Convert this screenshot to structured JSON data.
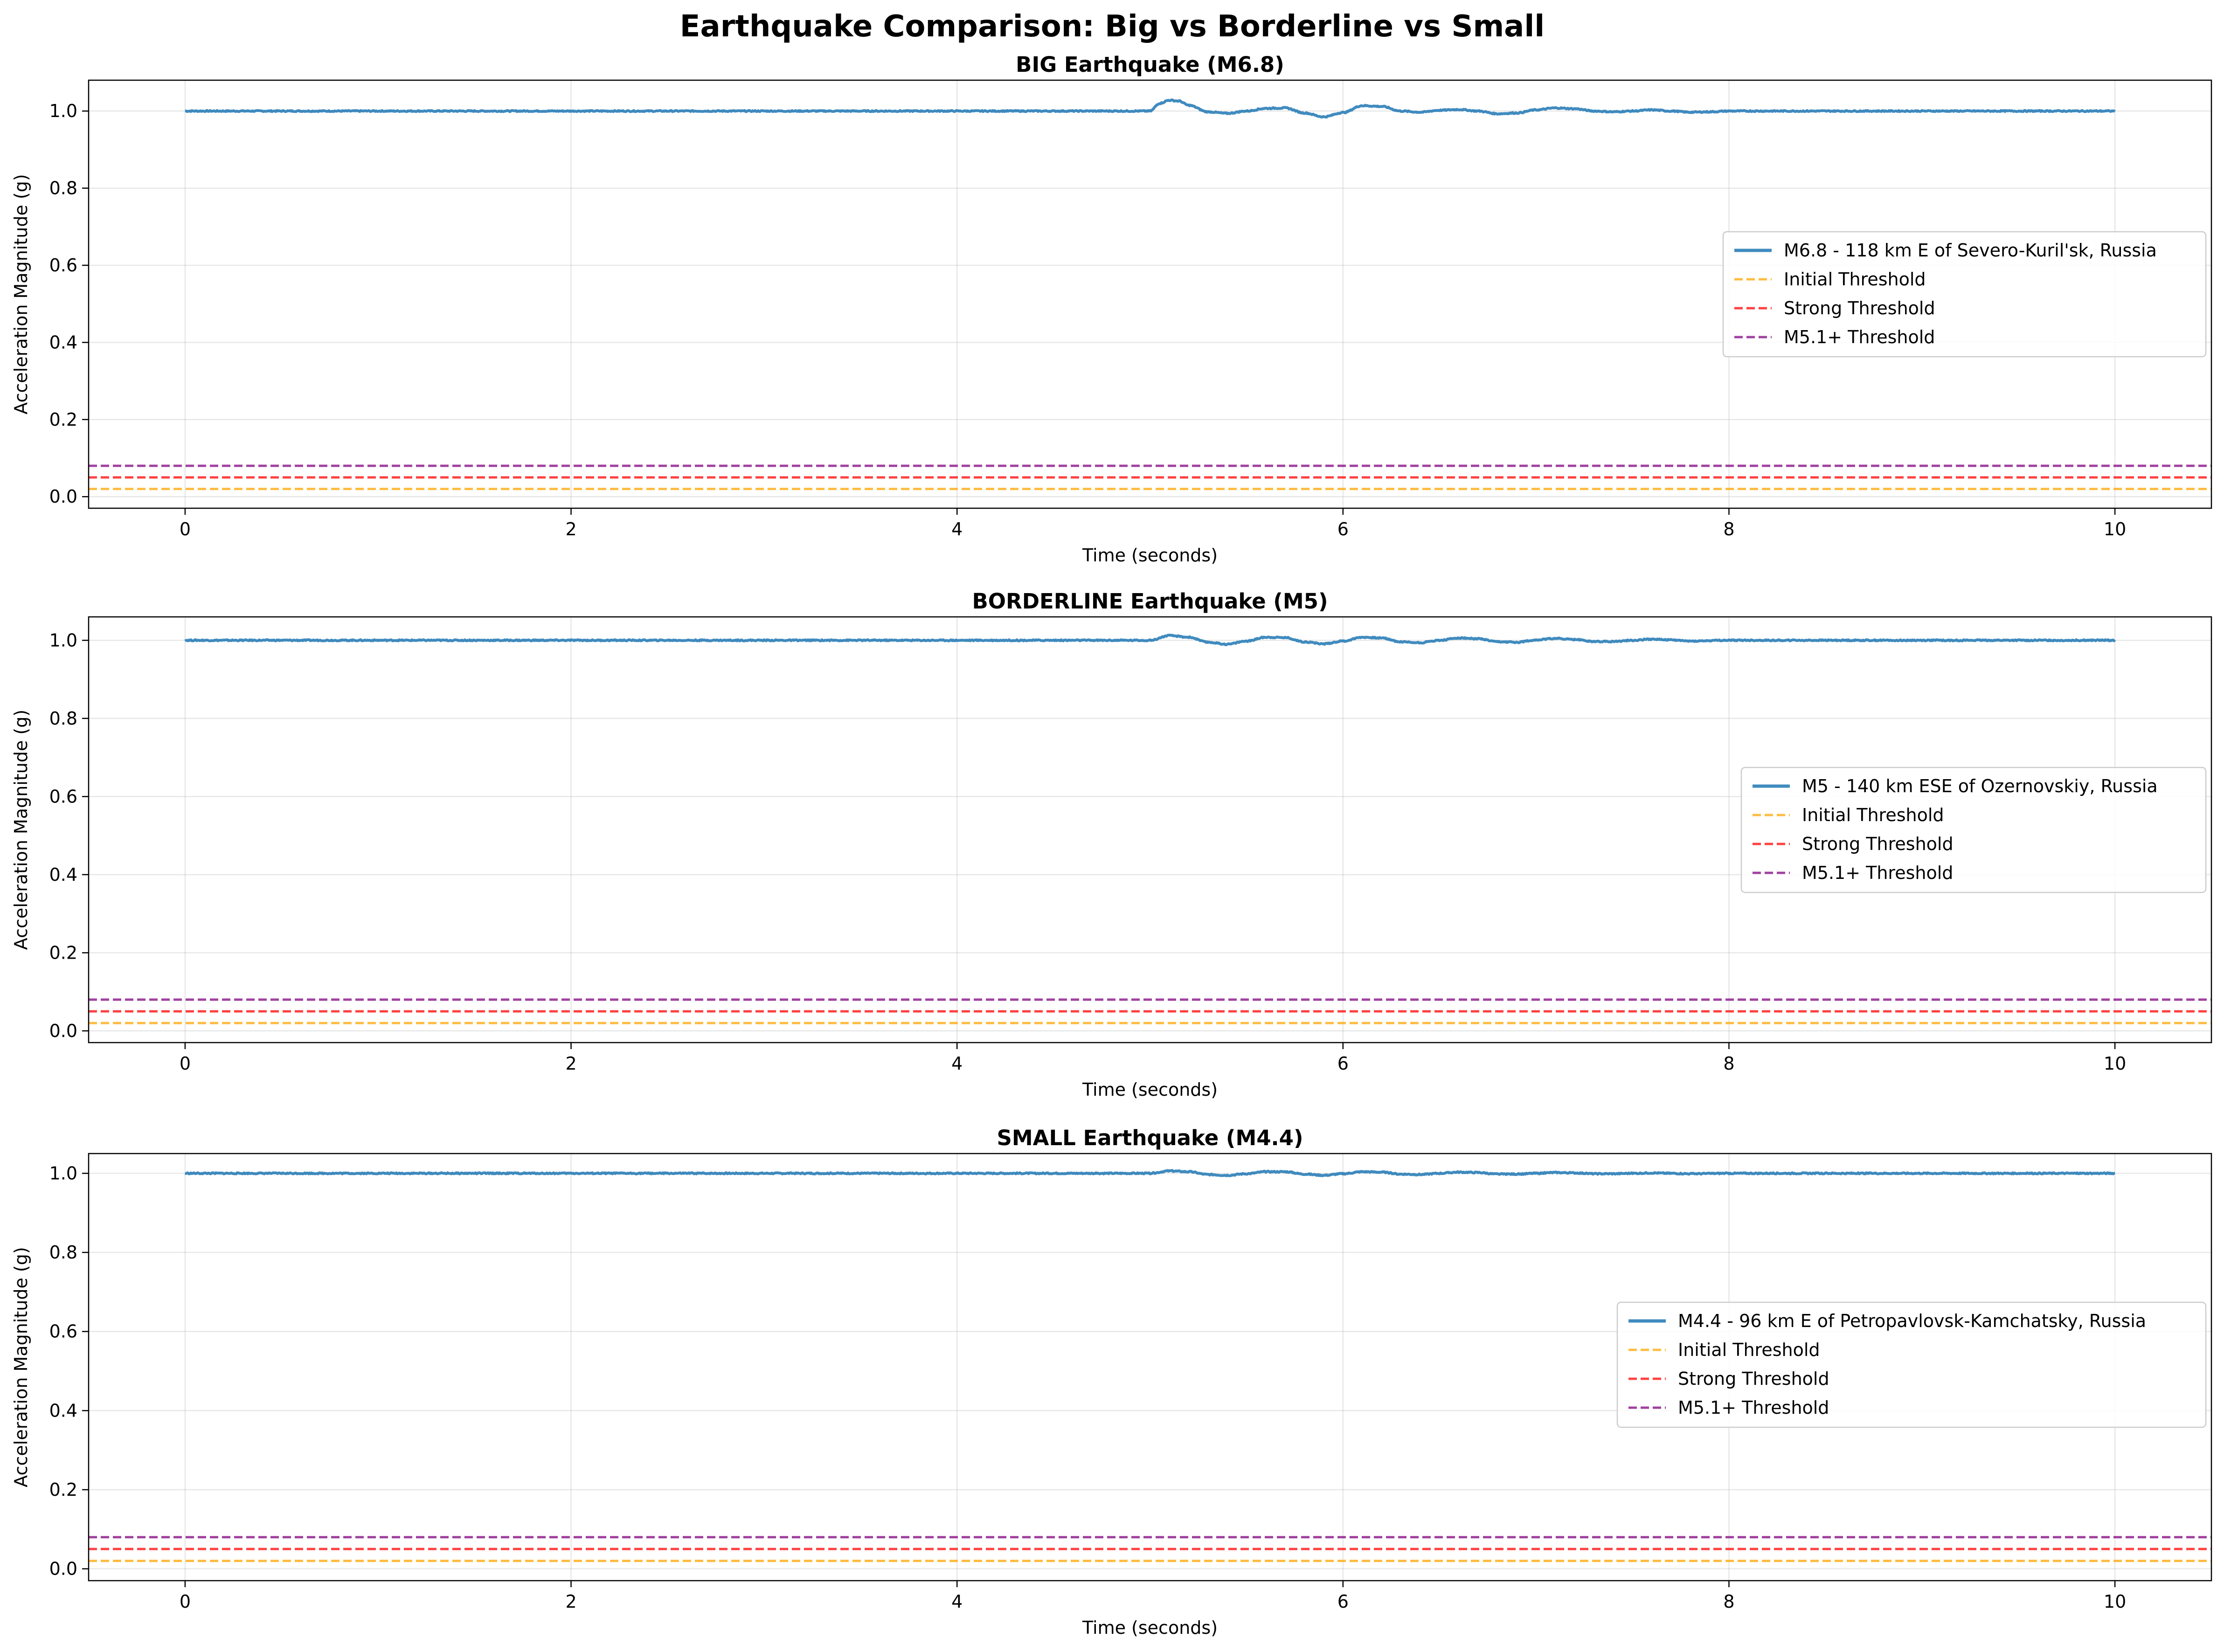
{
  "figure_title": "Earthquake Comparison: Big vs Borderline vs Small",
  "colors": {
    "signal": "#1f77b4",
    "initial": "#ffa500",
    "strong": "#ff0000",
    "m51": "#800080",
    "grid": "#b0b0b0",
    "axis": "#000000"
  },
  "chart_data": [
    {
      "type": "line",
      "title": "BIG Earthquake (M6.8)",
      "xlabel": "Time (seconds)",
      "ylabel": "Acceleration Magnitude (g)",
      "xlim": [
        -0.5,
        10.5
      ],
      "ylim": [
        -0.03,
        1.08
      ],
      "xticks": [
        0,
        2,
        4,
        6,
        8,
        10
      ],
      "xtick_labels": [
        "0",
        "2",
        "4",
        "6",
        "8",
        "10"
      ],
      "yticks": [
        0.0,
        0.2,
        0.4,
        0.6,
        0.8,
        1.0
      ],
      "ytick_labels": [
        "0.0",
        "0.2",
        "0.4",
        "0.6",
        "0.8",
        "1.0"
      ],
      "grid": true,
      "legend_position": "center-right",
      "signal": {
        "name": "M6.8 - 118 km E of Severo-Kuril'sk, Russia",
        "x": [
          0,
          4.5,
          5.0,
          5.05,
          5.1,
          5.15,
          5.2,
          5.3,
          5.4,
          5.5,
          5.6,
          5.7,
          5.8,
          5.9,
          6.0,
          6.1,
          6.2,
          6.3,
          6.4,
          6.5,
          6.6,
          6.7,
          6.8,
          6.9,
          7.0,
          7.1,
          7.2,
          7.3,
          7.4,
          7.5,
          7.6,
          7.7,
          7.8,
          7.9,
          8.0,
          8.5,
          9.0,
          10.0
        ],
        "y": [
          1.0,
          1.0,
          1.0,
          1.02,
          1.028,
          1.026,
          1.015,
          0.998,
          0.994,
          1.0,
          1.007,
          1.008,
          0.995,
          0.985,
          0.996,
          1.014,
          1.012,
          1.0,
          0.997,
          1.002,
          1.004,
          1.0,
          0.993,
          0.995,
          1.003,
          1.008,
          1.006,
          1.0,
          0.998,
          1.0,
          1.003,
          1.0,
          0.997,
          0.998,
          1.0,
          1.0,
          1.0,
          1.0
        ]
      },
      "thresholds": [
        {
          "name": "Initial Threshold",
          "value": 0.02,
          "color_key": "initial"
        },
        {
          "name": "Strong Threshold",
          "value": 0.05,
          "color_key": "strong"
        },
        {
          "name": "M5.1+ Threshold",
          "value": 0.08,
          "color_key": "m51"
        }
      ]
    },
    {
      "type": "line",
      "title": "BORDERLINE Earthquake (M5)",
      "xlabel": "Time (seconds)",
      "ylabel": "Acceleration Magnitude (g)",
      "xlim": [
        -0.5,
        10.5
      ],
      "ylim": [
        -0.03,
        1.06
      ],
      "xticks": [
        0,
        2,
        4,
        6,
        8,
        10
      ],
      "xtick_labels": [
        "0",
        "2",
        "4",
        "6",
        "8",
        "10"
      ],
      "yticks": [
        0.0,
        0.2,
        0.4,
        0.6,
        0.8,
        1.0
      ],
      "ytick_labels": [
        "0.0",
        "0.2",
        "0.4",
        "0.6",
        "0.8",
        "1.0"
      ],
      "grid": true,
      "legend_position": "center-right",
      "signal": {
        "name": "M5 - 140 km ESE of Ozernovskiy, Russia",
        "x": [
          0,
          4.5,
          5.0,
          5.1,
          5.2,
          5.3,
          5.4,
          5.5,
          5.6,
          5.7,
          5.8,
          5.9,
          6.0,
          6.1,
          6.2,
          6.3,
          6.4,
          6.5,
          6.6,
          6.7,
          6.8,
          6.9,
          7.0,
          7.1,
          7.2,
          7.3,
          7.4,
          7.5,
          7.6,
          7.7,
          7.8,
          8.0,
          9.0,
          10.0
        ],
        "y": [
          1.0,
          1.0,
          1.0,
          1.012,
          1.008,
          0.995,
          0.99,
          0.998,
          1.008,
          1.007,
          0.996,
          0.991,
          0.998,
          1.008,
          1.006,
          0.996,
          0.994,
          1.0,
          1.006,
          1.004,
          0.996,
          0.995,
          1.001,
          1.005,
          1.002,
          0.997,
          0.997,
          1.0,
          1.003,
          1.001,
          0.998,
          1.0,
          1.0,
          1.0
        ]
      },
      "thresholds": [
        {
          "name": "Initial Threshold",
          "value": 0.02,
          "color_key": "initial"
        },
        {
          "name": "Strong Threshold",
          "value": 0.05,
          "color_key": "strong"
        },
        {
          "name": "M5.1+ Threshold",
          "value": 0.08,
          "color_key": "m51"
        }
      ]
    },
    {
      "type": "line",
      "title": "SMALL Earthquake (M4.4)",
      "xlabel": "Time (seconds)",
      "ylabel": "Acceleration Magnitude (g)",
      "xlim": [
        -0.5,
        10.5
      ],
      "ylim": [
        -0.03,
        1.05
      ],
      "xticks": [
        0,
        2,
        4,
        6,
        8,
        10
      ],
      "xtick_labels": [
        "0",
        "2",
        "4",
        "6",
        "8",
        "10"
      ],
      "yticks": [
        0.0,
        0.2,
        0.4,
        0.6,
        0.8,
        1.0
      ],
      "ytick_labels": [
        "0.0",
        "0.2",
        "0.4",
        "0.6",
        "0.8",
        "1.0"
      ],
      "grid": true,
      "legend_position": "center-right",
      "signal": {
        "name": "M4.4 - 96 km E of Petropavlovsk-Kamchatsky, Russia",
        "x": [
          0,
          4.5,
          5.0,
          5.1,
          5.2,
          5.3,
          5.4,
          5.5,
          5.6,
          5.7,
          5.8,
          5.9,
          6.0,
          6.1,
          6.2,
          6.3,
          6.4,
          6.5,
          6.6,
          6.7,
          6.8,
          6.9,
          7.0,
          7.1,
          7.2,
          7.3,
          7.4,
          7.5,
          7.6,
          7.7,
          7.8,
          8.0,
          9.0,
          10.0
        ],
        "y": [
          1.0,
          1.0,
          1.0,
          1.006,
          1.004,
          0.997,
          0.995,
          0.999,
          1.004,
          1.004,
          0.998,
          0.995,
          0.999,
          1.004,
          1.003,
          0.998,
          0.997,
          1.0,
          1.003,
          1.002,
          0.998,
          0.998,
          1.0,
          1.002,
          1.001,
          0.999,
          0.999,
          1.0,
          1.001,
          1.0,
          0.999,
          1.0,
          1.0,
          1.0
        ]
      },
      "thresholds": [
        {
          "name": "Initial Threshold",
          "value": 0.02,
          "color_key": "initial"
        },
        {
          "name": "Strong Threshold",
          "value": 0.05,
          "color_key": "strong"
        },
        {
          "name": "M5.1+ Threshold",
          "value": 0.08,
          "color_key": "m51"
        }
      ]
    }
  ]
}
